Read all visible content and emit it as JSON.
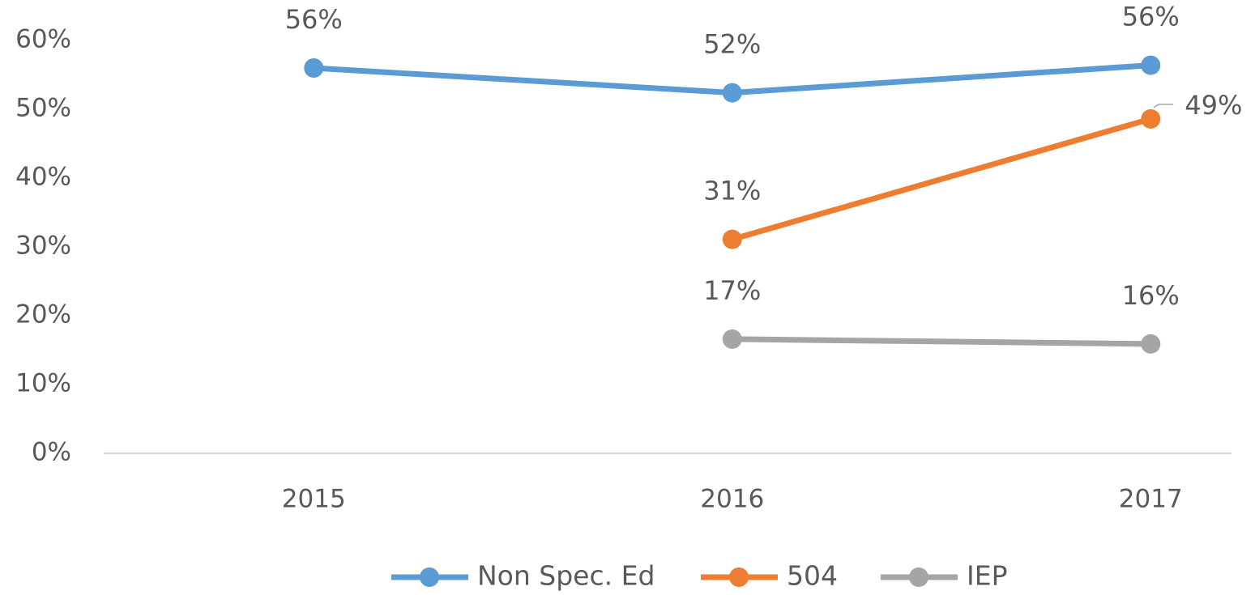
{
  "chart_data": {
    "type": "line",
    "categories": [
      "2015",
      "2016",
      "2017"
    ],
    "series": [
      {
        "name": "Non Spec. Ed",
        "color": "#5b9bd5",
        "values": [
          56.0,
          52.4,
          56.4
        ],
        "value_labels": [
          "56%",
          "52%",
          "56%"
        ]
      },
      {
        "name": "504",
        "color": "#ed7d31",
        "values": [
          null,
          31.1,
          48.6
        ],
        "value_labels": [
          null,
          "31%",
          "49%"
        ]
      },
      {
        "name": "IEP",
        "color": "#a5a5a5",
        "values": [
          null,
          16.6,
          15.9
        ],
        "value_labels": [
          null,
          "17%",
          "16%"
        ]
      }
    ],
    "ylim": [
      0,
      60
    ],
    "yticks": [
      {
        "value": 0,
        "label": "0%"
      },
      {
        "value": 10,
        "label": "10%"
      },
      {
        "value": 20,
        "label": "20%"
      },
      {
        "value": 30,
        "label": "30%"
      },
      {
        "value": 40,
        "label": "40%"
      },
      {
        "value": 50,
        "label": "50%"
      },
      {
        "value": 60,
        "label": "60%"
      }
    ],
    "legend": "bottom"
  }
}
